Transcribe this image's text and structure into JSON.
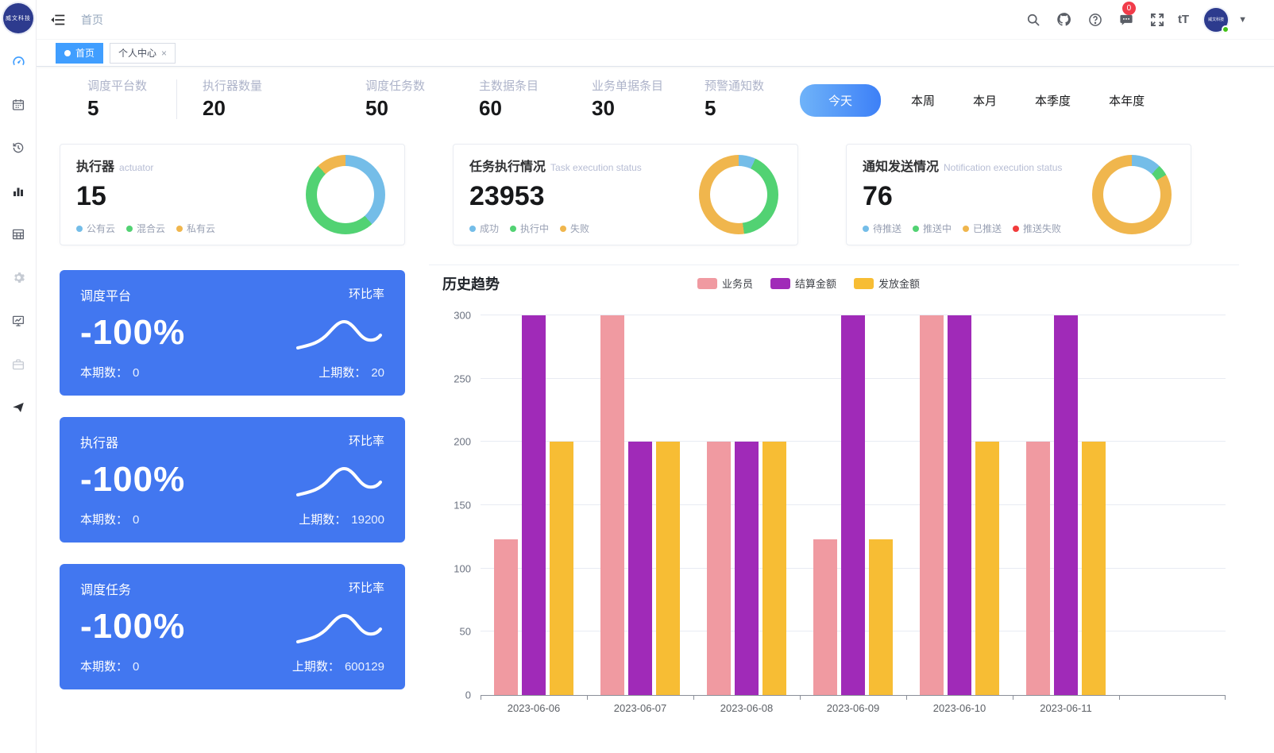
{
  "app": {
    "logo_text": "威文科技"
  },
  "theme": {
    "accent": "#409eff",
    "card_blue": "#4277f0",
    "badge_red": "#f13c4a",
    "time_pill_gradient": [
      "#6fb3f9",
      "#3d80f7"
    ]
  },
  "navbar": {
    "breadcrumb": "首页",
    "message_badge": "0",
    "font_size_label": "tT",
    "icons": [
      "search",
      "github",
      "help",
      "message",
      "fullscreen",
      "font-size",
      "avatar",
      "caret-down"
    ]
  },
  "sidebar": {
    "icons": [
      "dashboard",
      "calendar",
      "history",
      "bar-chart",
      "table",
      "settings",
      "monitor-chart",
      "briefcase",
      "paper-plane"
    ],
    "active": "dashboard"
  },
  "tabs": {
    "close_glyph": "×",
    "items": [
      {
        "label": "首页",
        "active": true
      },
      {
        "label": "个人中心",
        "active": false
      }
    ]
  },
  "stats": {
    "items": [
      {
        "label": "调度平台数",
        "value": "5"
      },
      {
        "label": "执行器数量",
        "value": "20"
      },
      {
        "label": "调度任务数",
        "value": "50"
      },
      {
        "label": "主数据条目",
        "value": "60"
      },
      {
        "label": "业务单据条目",
        "value": "30"
      },
      {
        "label": "预警通知数",
        "value": "5"
      }
    ]
  },
  "time_filters": {
    "active_index": 0,
    "options": [
      "今天",
      "本周",
      "本月",
      "本季度",
      "本年度"
    ]
  },
  "summary_cards": [
    {
      "title": "执行器",
      "subtitle": "actuator",
      "value": "15",
      "legend": [
        {
          "label": "公有云",
          "color": "#74bde8"
        },
        {
          "label": "混合云",
          "color": "#52d273"
        },
        {
          "label": "私有云",
          "color": "#f0b64d"
        }
      ],
      "segments": [
        {
          "color": "#74bde8",
          "to": 138
        },
        {
          "color": "#52d273",
          "to": 316
        },
        {
          "color": "#f0b64d",
          "to": 360
        }
      ]
    },
    {
      "title": "任务执行情况",
      "subtitle": "Task execution status",
      "value": "23953",
      "legend": [
        {
          "label": "成功",
          "color": "#74bde8"
        },
        {
          "label": "执行中",
          "color": "#52d273"
        },
        {
          "label": "失败",
          "color": "#f0b64d"
        }
      ],
      "segments": [
        {
          "color": "#74bde8",
          "to": 25
        },
        {
          "color": "#52d273",
          "to": 172
        },
        {
          "color": "#f0b64d",
          "to": 360
        }
      ]
    },
    {
      "title": "通知发送情况",
      "subtitle": "Notification execution status",
      "value": "76",
      "legend": [
        {
          "label": "待推送",
          "color": "#74bde8"
        },
        {
          "label": "推送中",
          "color": "#52d273"
        },
        {
          "label": "已推送",
          "color": "#f0b64d"
        },
        {
          "label": "推送失败",
          "color": "#f23c3c"
        }
      ],
      "segments": [
        {
          "color": "#74bde8",
          "to": 44
        },
        {
          "color": "#52d273",
          "to": 60
        },
        {
          "color": "#f0b64d",
          "to": 360
        }
      ]
    }
  ],
  "ratio_cards": [
    {
      "title": "调度平台",
      "tag": "环比率",
      "percent": "-100%",
      "current_label": "本期数：",
      "current_value": "0",
      "previous_label": "上期数：",
      "previous_value": "20"
    },
    {
      "title": "执行器",
      "tag": "环比率",
      "percent": "-100%",
      "current_label": "本期数：",
      "current_value": "0",
      "previous_label": "上期数：",
      "previous_value": "19200"
    },
    {
      "title": "调度任务",
      "tag": "环比率",
      "percent": "-100%",
      "current_label": "本期数：",
      "current_value": "0",
      "previous_label": "上期数：",
      "previous_value": "600129"
    }
  ],
  "chart_data": {
    "type": "bar",
    "title": "历史趋势",
    "categories": [
      "2023-06-06",
      "2023-06-07",
      "2023-06-08",
      "2023-06-09",
      "2023-06-10",
      "2023-06-11"
    ],
    "series": [
      {
        "name": "业务员",
        "color": "#f09aa1",
        "values": [
          123,
          300,
          200,
          123,
          300,
          200
        ]
      },
      {
        "name": "结算金额",
        "color": "#a02ab8",
        "values": [
          300,
          200,
          200,
          300,
          300,
          300
        ]
      },
      {
        "name": "发放金额",
        "color": "#f7bd34",
        "values": [
          200,
          200,
          200,
          123,
          200,
          200
        ]
      }
    ],
    "xlabel": "",
    "ylabel": "",
    "ylim": [
      0,
      300
    ],
    "yticks": [
      0,
      50,
      100,
      150,
      200,
      250,
      300
    ],
    "grid": true,
    "legend_position": "top"
  }
}
